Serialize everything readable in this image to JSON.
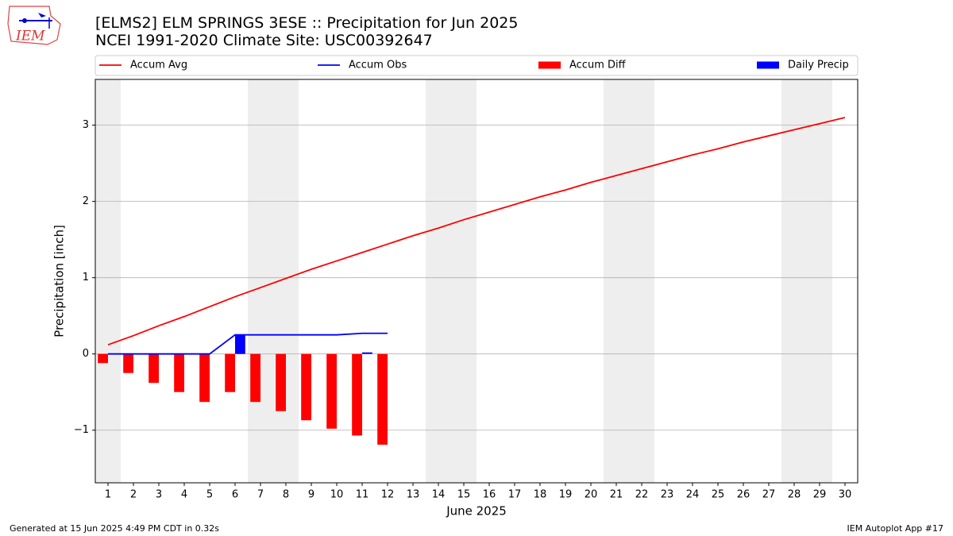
{
  "logo_text": "IEM",
  "footer_left": "Generated at 15 Jun 2025 4:49 PM CDT in 0.32s",
  "footer_right": "IEM Autoplot App #17",
  "chart_data": {
    "type": "line",
    "title": "[ELMS2] ELM SPRINGS 3ESE :: Precipitation for Jun 2025",
    "subtitle": "NCEI 1991-2020 Climate Site: USC00392647",
    "xlabel": "June 2025",
    "ylabel": "Precipitation [inch]",
    "x": [
      1,
      2,
      3,
      4,
      5,
      6,
      7,
      8,
      9,
      10,
      11,
      12,
      13,
      14,
      15,
      16,
      17,
      18,
      19,
      20,
      21,
      22,
      23,
      24,
      25,
      26,
      27,
      28,
      29,
      30
    ],
    "xlim": [
      0.5,
      30.5
    ],
    "xticks": [
      1,
      2,
      3,
      4,
      5,
      6,
      7,
      8,
      9,
      10,
      11,
      12,
      13,
      14,
      15,
      16,
      17,
      18,
      19,
      20,
      21,
      22,
      23,
      24,
      25,
      26,
      27,
      28,
      29,
      30
    ],
    "ylim": [
      -1.69,
      3.6
    ],
    "yticks": [
      {
        "value": -1,
        "label": "−1"
      },
      0,
      1,
      2,
      3
    ],
    "grid": true,
    "shaded_days": [
      1,
      7,
      8,
      14,
      15,
      21,
      22,
      28,
      29
    ],
    "series": [
      {
        "name": "Accum Avg",
        "mark": "line",
        "color": "#ff0000",
        "values": [
          0.12,
          0.24,
          0.37,
          0.49,
          0.62,
          0.75,
          0.87,
          0.99,
          1.11,
          1.22,
          1.33,
          1.44,
          1.55,
          1.65,
          1.76,
          1.86,
          1.96,
          2.06,
          2.15,
          2.25,
          2.34,
          2.43,
          2.52,
          2.61,
          2.69,
          2.78,
          2.86,
          2.94,
          3.02,
          3.1
        ]
      },
      {
        "name": "Accum Obs",
        "mark": "line",
        "color": "#0000ff",
        "values": [
          0,
          0,
          0,
          0,
          0,
          0.25,
          0.25,
          0.25,
          0.25,
          0.25,
          0.27,
          0.27,
          null,
          null,
          null,
          null,
          null,
          null,
          null,
          null,
          null,
          null,
          null,
          null,
          null,
          null,
          null,
          null,
          null,
          null
        ]
      },
      {
        "name": "Accum Diff",
        "mark": "bar",
        "color": "#ff0000",
        "values": [
          -0.12,
          -0.25,
          -0.38,
          -0.5,
          -0.63,
          -0.5,
          -0.63,
          -0.75,
          -0.87,
          -0.98,
          -1.07,
          -1.19,
          null,
          null,
          null,
          null,
          null,
          null,
          null,
          null,
          null,
          null,
          null,
          null,
          null,
          null,
          null,
          null,
          null,
          null
        ]
      },
      {
        "name": "Daily Precip",
        "mark": "bar",
        "color": "#0000ff",
        "values": [
          0,
          0,
          0,
          0,
          0,
          0.25,
          0,
          0,
          0,
          0,
          0.02,
          0,
          null,
          null,
          null,
          null,
          null,
          null,
          null,
          null,
          null,
          null,
          null,
          null,
          null,
          null,
          null,
          null,
          null,
          null
        ]
      }
    ]
  }
}
